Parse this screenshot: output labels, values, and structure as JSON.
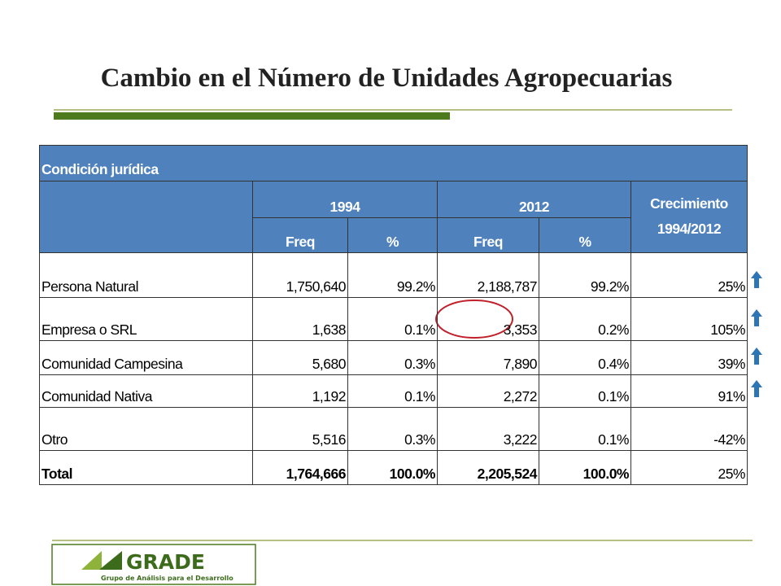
{
  "title": "Cambio en el Número de Unidades Agropecuarias",
  "table": {
    "caption": "Condición jurídica",
    "years": [
      "1994",
      "2012"
    ],
    "growth": "Crecimiento 1994/2012",
    "subheaders": [
      "Freq",
      "%",
      "Freq",
      "%"
    ],
    "rows": [
      [
        "Persona Natural",
        "1,750,640",
        "99.2%",
        "2,188,787",
        "99.2%",
        "25%"
      ],
      [
        "Empresa o SRL",
        "1,638",
        "0.1%",
        "3,353",
        "0.2%",
        "105%"
      ],
      [
        "Comunidad Campesina",
        "5,680",
        "0.3%",
        "7,890",
        "0.4%",
        "39%"
      ],
      [
        "Comunidad Nativa",
        "1,192",
        "0.1%",
        "2,272",
        "0.1%",
        "91%"
      ],
      [
        "Otro",
        "5,516",
        "0.3%",
        "3,222",
        "0.1%",
        "-42%"
      ],
      [
        "Total",
        "1,764,666",
        "100.0%",
        "2,205,524",
        "100.0%",
        "25%"
      ]
    ]
  },
  "logo": {
    "name": "GRADE",
    "tagline": "Grupo de Análisis para el Desarrollo"
  }
}
